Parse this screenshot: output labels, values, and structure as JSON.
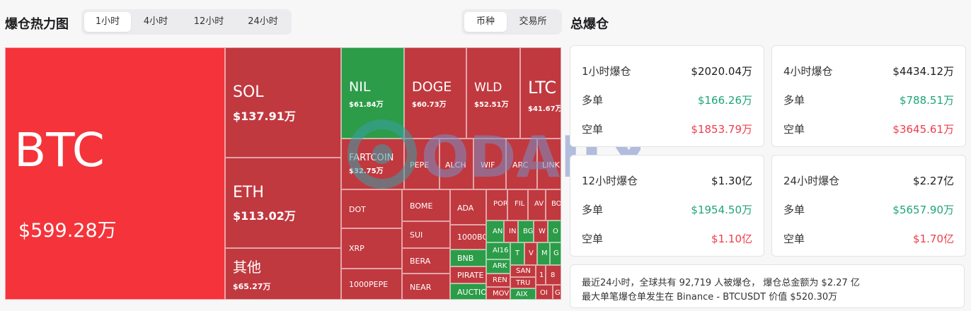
{
  "header": {
    "title": "爆仓热力图",
    "time_tabs": [
      {
        "label": "1小时",
        "active": true
      },
      {
        "label": "4小时",
        "active": false
      },
      {
        "label": "12小时",
        "active": false
      },
      {
        "label": "24小时",
        "active": false
      }
    ],
    "type_tabs": [
      {
        "label": "币种",
        "active": true
      },
      {
        "label": "交易所",
        "active": false
      }
    ]
  },
  "treemap": {
    "tiles": {
      "btc": {
        "symbol": "BTC",
        "value": "$599.28万"
      },
      "sol": {
        "symbol": "SOL",
        "value": "$137.91万"
      },
      "eth": {
        "symbol": "ETH",
        "value": "$113.02万"
      },
      "other": {
        "symbol": "其他",
        "value": "$65.27万"
      },
      "nil": {
        "symbol": "NIL",
        "value": "$61.84万"
      },
      "doge": {
        "symbol": "DOGE",
        "value": "$60.73万"
      },
      "wld": {
        "symbol": "WLD",
        "value": "$52.51万"
      },
      "ltc": {
        "symbol": "LTC",
        "value": "$41.67万"
      },
      "fartcoin": {
        "symbol": "FARTCOIN",
        "value": "$32.75万"
      },
      "pepe": "PEPE",
      "alch": "ALCH",
      "wif": "WIF",
      "arc": "ARC",
      "link": "LINK",
      "dot": "DOT",
      "xrp": "XRP",
      "k1000pepe": "1000PEPE",
      "bome": "BOME",
      "sui": "SUI",
      "bera": "BERA",
      "near": "NEAR",
      "ada": "ADA",
      "k1000bo": "1000BO",
      "bnb": "BNB",
      "pirate": "PIRATE",
      "auction": "AUCTIO",
      "por": "POR",
      "fil": "FIL",
      "av": "AV",
      "bo": "BO",
      "an": "AN",
      "in1": "IN",
      "bg": "BG",
      "w": "W",
      "o": "O",
      "ai16": "AI16",
      "tc": "T",
      "vc": "V",
      "mc": "M",
      "gc": "G",
      "ark": "ARK",
      "ren": "REN",
      "mov": "MOV",
      "san": "SAN",
      "tru": "TRU",
      "aix": "AIX",
      "ot": "OI",
      "ch1": "1",
      "ch8": "8",
      "gr": "G"
    }
  },
  "totals": {
    "title": "总爆仓",
    "long_label": "多单",
    "short_label": "空单",
    "cards": [
      {
        "period": "1小时爆仓",
        "total": "$2020.04万",
        "long": "$166.26万",
        "short": "$1853.79万"
      },
      {
        "period": "4小时爆仓",
        "total": "$4434.12万",
        "long": "$788.51万",
        "short": "$3645.61万"
      },
      {
        "period": "12小时爆仓",
        "total": "$1.30亿",
        "long": "$1954.50万",
        "short": "$1.10亿"
      },
      {
        "period": "24小时爆仓",
        "total": "$2.27亿",
        "long": "$5657.90万",
        "short": "$1.70亿"
      }
    ],
    "summary_line1": "最近24小时，全球共有 92,719 人被爆仓， 爆仓总金额为 $2.27 亿",
    "summary_line2": "最大单笔爆仓单发生在 Binance - BTCUSDT 价值 $520.30万"
  },
  "watermark": {
    "text": "ODAILY"
  },
  "colors": {
    "bright_red": "#f5333a",
    "red": "#c0393f",
    "green": "#2c9c48",
    "long_green": "#1ea47a",
    "short_red": "#ef3d4b"
  }
}
